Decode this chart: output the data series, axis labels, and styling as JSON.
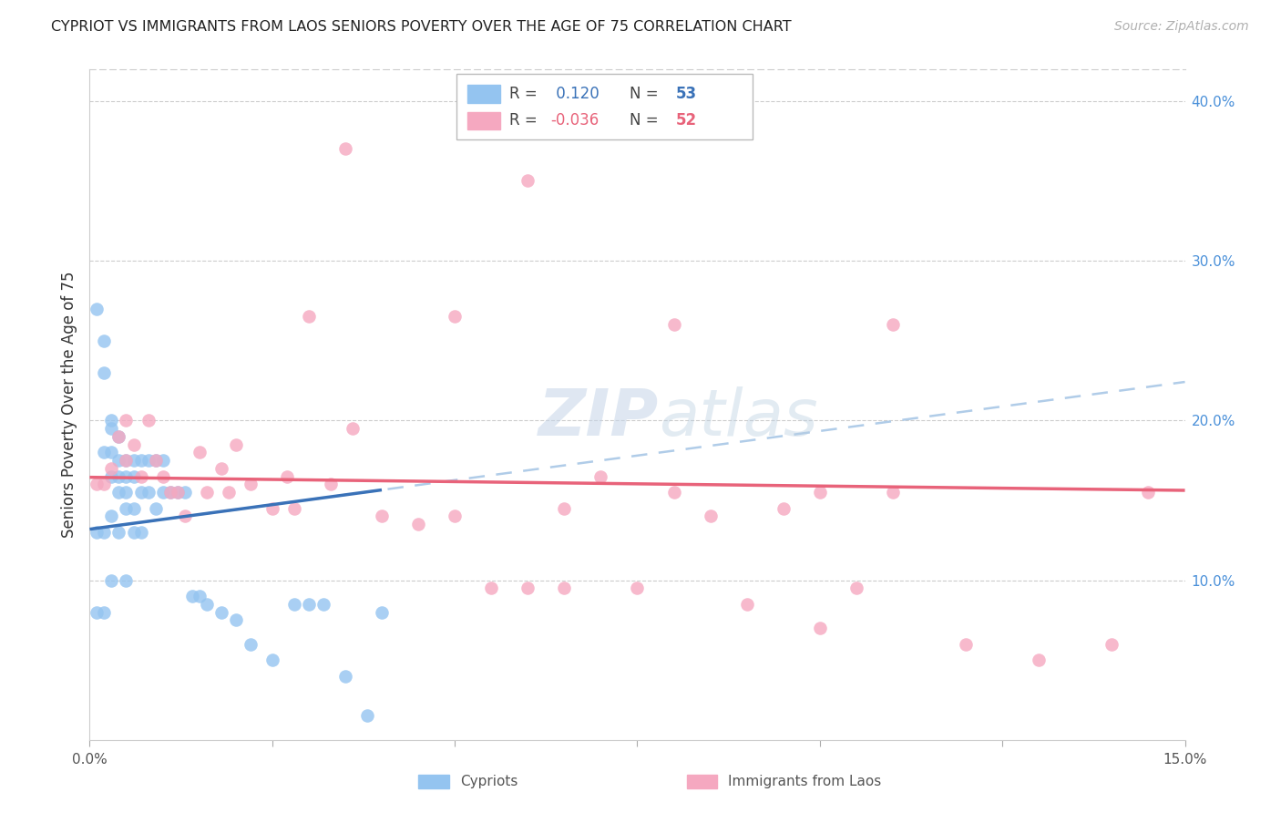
{
  "title": "CYPRIOT VS IMMIGRANTS FROM LAOS SENIORS POVERTY OVER THE AGE OF 75 CORRELATION CHART",
  "source": "Source: ZipAtlas.com",
  "ylabel": "Seniors Poverty Over the Age of 75",
  "x_min": 0.0,
  "x_max": 0.15,
  "y_min": 0.0,
  "y_max": 0.42,
  "y_ticks_right": [
    0.0,
    0.1,
    0.2,
    0.3,
    0.4
  ],
  "y_tick_labels_right": [
    "",
    "10.0%",
    "20.0%",
    "30.0%",
    "40.0%"
  ],
  "legend_r_blue": "0.120",
  "legend_n_blue": "53",
  "legend_r_pink": "-0.036",
  "legend_n_pink": "52",
  "blue_color": "#94c4f0",
  "pink_color": "#f5a8c0",
  "blue_line_color": "#3a72b8",
  "pink_line_color": "#e8637a",
  "blue_dashed_color": "#b0cce8",
  "watermark_zip": "ZIP",
  "watermark_atlas": "atlas",
  "cypriot_x": [
    0.001,
    0.001,
    0.001,
    0.002,
    0.002,
    0.002,
    0.002,
    0.002,
    0.003,
    0.003,
    0.003,
    0.003,
    0.003,
    0.003,
    0.004,
    0.004,
    0.004,
    0.004,
    0.004,
    0.005,
    0.005,
    0.005,
    0.005,
    0.005,
    0.006,
    0.006,
    0.006,
    0.006,
    0.007,
    0.007,
    0.007,
    0.008,
    0.008,
    0.009,
    0.009,
    0.01,
    0.01,
    0.011,
    0.012,
    0.013,
    0.014,
    0.015,
    0.016,
    0.018,
    0.02,
    0.022,
    0.025,
    0.028,
    0.03,
    0.032,
    0.035,
    0.038,
    0.04
  ],
  "cypriot_y": [
    0.27,
    0.13,
    0.08,
    0.25,
    0.23,
    0.18,
    0.13,
    0.08,
    0.2,
    0.195,
    0.18,
    0.165,
    0.14,
    0.1,
    0.19,
    0.175,
    0.165,
    0.155,
    0.13,
    0.175,
    0.165,
    0.155,
    0.145,
    0.1,
    0.175,
    0.165,
    0.145,
    0.13,
    0.175,
    0.155,
    0.13,
    0.175,
    0.155,
    0.175,
    0.145,
    0.175,
    0.155,
    0.155,
    0.155,
    0.155,
    0.09,
    0.09,
    0.085,
    0.08,
    0.075,
    0.06,
    0.05,
    0.085,
    0.085,
    0.085,
    0.04,
    0.015,
    0.08
  ],
  "laos_x": [
    0.001,
    0.002,
    0.003,
    0.004,
    0.005,
    0.005,
    0.006,
    0.007,
    0.008,
    0.009,
    0.01,
    0.011,
    0.012,
    0.013,
    0.015,
    0.016,
    0.018,
    0.019,
    0.02,
    0.022,
    0.025,
    0.027,
    0.028,
    0.03,
    0.033,
    0.036,
    0.04,
    0.045,
    0.05,
    0.055,
    0.06,
    0.065,
    0.07,
    0.075,
    0.08,
    0.085,
    0.09,
    0.095,
    0.1,
    0.105,
    0.11,
    0.12,
    0.13,
    0.14,
    0.145,
    0.05,
    0.065,
    0.1,
    0.08,
    0.035,
    0.06,
    0.11
  ],
  "laos_y": [
    0.16,
    0.16,
    0.17,
    0.19,
    0.2,
    0.175,
    0.185,
    0.165,
    0.2,
    0.175,
    0.165,
    0.155,
    0.155,
    0.14,
    0.18,
    0.155,
    0.17,
    0.155,
    0.185,
    0.16,
    0.145,
    0.165,
    0.145,
    0.265,
    0.16,
    0.195,
    0.14,
    0.135,
    0.14,
    0.095,
    0.095,
    0.145,
    0.165,
    0.095,
    0.155,
    0.14,
    0.085,
    0.145,
    0.07,
    0.095,
    0.155,
    0.06,
    0.05,
    0.06,
    0.155,
    0.265,
    0.095,
    0.155,
    0.26,
    0.37,
    0.35,
    0.26
  ]
}
